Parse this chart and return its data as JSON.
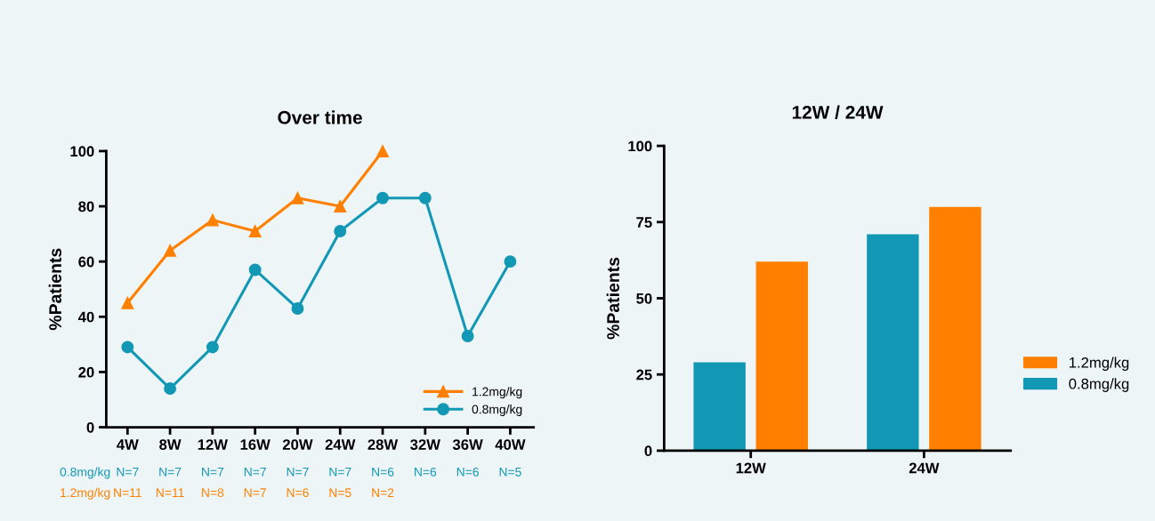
{
  "chart_data": [
    {
      "type": "line",
      "title": "Over time",
      "ylabel": "%Patients",
      "categories": [
        "4W",
        "8W",
        "12W",
        "16W",
        "20W",
        "24W",
        "28W",
        "32W",
        "36W",
        "40W"
      ],
      "series": [
        {
          "name": "1.2mg/kg",
          "color": "#ff8000",
          "marker": "triangle",
          "values": [
            45,
            64,
            75,
            71,
            83,
            80,
            100,
            null,
            null,
            null
          ]
        },
        {
          "name": "0.8mg/kg",
          "color": "#1298b4",
          "marker": "circle",
          "values": [
            29,
            14,
            29,
            57,
            43,
            71,
            83,
            83,
            33,
            60
          ]
        }
      ],
      "ylim": [
        0,
        100
      ],
      "yticks": [
        0,
        20,
        40,
        60,
        80,
        100
      ],
      "grid": false,
      "legend": "bottom right",
      "line_style": "solid",
      "annotations": [
        "0.8mg/kg",
        "N=7",
        "N=7",
        "N=7",
        "N=7",
        "N=7",
        "N=7",
        "N=6",
        "N=6",
        "N=6",
        "N=5",
        "1.2mg/kg",
        "N=11",
        "N=11",
        "N=8",
        "N=7",
        "N=6",
        "N=5",
        "N=2"
      ]
    },
    {
      "type": "bar",
      "title": "12W / 24W",
      "ylabel": "%Patients",
      "categories": [
        "12W",
        "24W"
      ],
      "series": [
        {
          "name": "0.8mg/kg",
          "color": "#1298b4",
          "values": [
            29,
            71
          ]
        },
        {
          "name": "1.2mg/kg",
          "color": "#ff8000",
          "values": [
            62,
            80
          ]
        }
      ],
      "ylim": [
        0,
        100
      ],
      "yticks": [
        0,
        25,
        50,
        75,
        100
      ],
      "grid": false,
      "legend": "right"
    }
  ]
}
